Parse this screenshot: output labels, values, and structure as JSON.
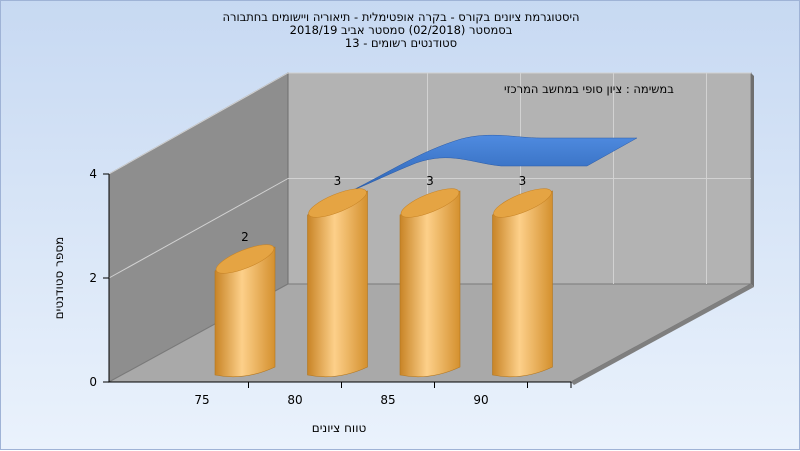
{
  "chart_data": {
    "type": "bar",
    "title_lines": [
      "היסטוגרמת ציונים בקורס - בקרה אופטימלית - תיאוריה ויישומים בחתבורה",
      "בסמסטר  (02/2018)  סמסטר אביב 2018/19",
      "סטודנטים רשומים - 13"
    ],
    "annotation": "במשימה : ציון סופי במחשב המרכזי",
    "categories": [
      "75",
      "80",
      "85",
      "90"
    ],
    "values": [
      2,
      3,
      3,
      3
    ],
    "data_labels": [
      "2",
      "3",
      "3",
      "3"
    ],
    "y_ticks": [
      "0",
      "2",
      "4"
    ],
    "ylim": [
      0,
      4
    ],
    "xlabel": "טווח ציונים",
    "ylabel": "מספר סטודנטים",
    "colors": {
      "bar_light": "#fdd08a",
      "bar_mid": "#f0b35c",
      "bar_dark": "#c88426",
      "bar_top": "#e5a443",
      "curve": "#3a78cc",
      "back_wall": "#b3b3b3",
      "side_wall": "#8e8e8e",
      "floor": "#a9a9a9"
    },
    "grid": true
  }
}
